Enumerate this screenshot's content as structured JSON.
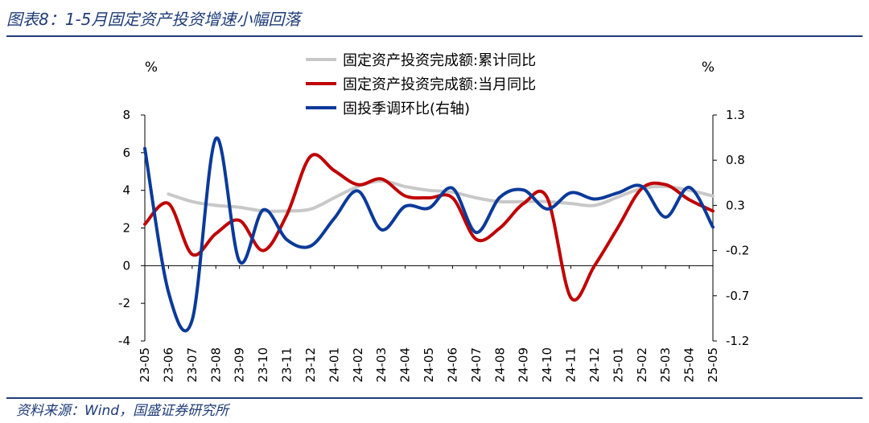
{
  "header": {
    "title": "图表8：1-5月固定资产投资增速小幅回落"
  },
  "footer": {
    "source": "资料来源：Wind，国盛证券研究所"
  },
  "chart_data": {
    "type": "line",
    "x": [
      "23-05",
      "23-06",
      "23-07",
      "23-08",
      "23-09",
      "23-10",
      "23-11",
      "23-12",
      "24-01",
      "24-02",
      "24-03",
      "24-04",
      "24-05",
      "24-06",
      "24-07",
      "24-08",
      "24-09",
      "24-10",
      "24-11",
      "24-12",
      "25-01",
      "25-02",
      "25-03",
      "25-04",
      "25-05"
    ],
    "left_axis": {
      "label": "%",
      "ylim": [
        -4,
        8
      ],
      "ticks": [
        "8",
        "6",
        "4",
        "2",
        "0",
        "-2",
        "-4"
      ]
    },
    "right_axis": {
      "label": "%",
      "ylim": [
        -1.2,
        1.3
      ],
      "ticks": [
        "1.3",
        "0.8",
        "0.3",
        "-0.2",
        "-0.7",
        "-1.2"
      ]
    },
    "series": [
      {
        "name": "固定资产投资完成额:累计同比",
        "axis": "left",
        "color": "#c8c8c8",
        "values": [
          null,
          3.8,
          3.4,
          3.2,
          3.1,
          2.9,
          2.9,
          3.0,
          null,
          4.2,
          4.5,
          4.2,
          4.0,
          3.9,
          3.6,
          3.4,
          3.4,
          3.4,
          3.3,
          3.2,
          null,
          4.1,
          4.2,
          4.0,
          3.7
        ]
      },
      {
        "name": "固定资产投资完成额:当月同比",
        "axis": "left",
        "color": "#c00000",
        "values": [
          2.2,
          3.3,
          0.6,
          1.7,
          2.4,
          0.8,
          2.7,
          5.8,
          null,
          4.3,
          4.6,
          3.7,
          3.6,
          3.6,
          1.4,
          2.0,
          3.3,
          3.6,
          -1.7,
          0.0,
          null,
          4.1,
          4.3,
          3.5,
          2.9
        ]
      },
      {
        "name": "固投季调环比(右轴)",
        "axis": "right",
        "color": "#0a3a9a",
        "values": [
          0.93,
          -0.66,
          -0.97,
          1.04,
          -0.32,
          0.25,
          -0.08,
          -0.15,
          null,
          0.46,
          0.03,
          0.29,
          0.27,
          0.49,
          0.0,
          0.39,
          0.47,
          0.26,
          0.44,
          0.37,
          null,
          0.51,
          0.17,
          0.5,
          0.06
        ]
      }
    ],
    "grid": false,
    "legend_position": "top"
  }
}
